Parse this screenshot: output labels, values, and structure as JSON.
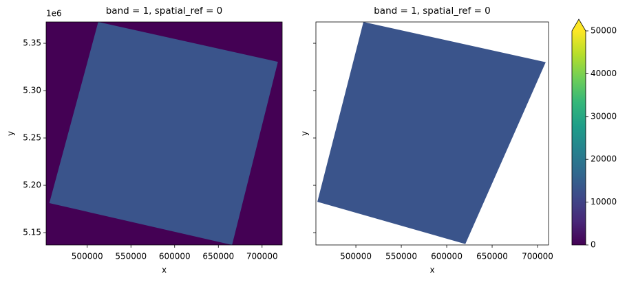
{
  "chart_data": [
    {
      "type": "image",
      "title": "band = 1, spatial_ref = 0",
      "xlabel": "x",
      "ylabel": "y",
      "xlim": [
        453000,
        723000
      ],
      "xticks": [
        500000,
        550000,
        600000,
        650000,
        700000
      ],
      "ylim": [
        5137000,
        5372500
      ],
      "yticks": [
        {
          "value": 5150000,
          "label": "5.15"
        },
        {
          "value": 5200000,
          "label": "5.20"
        },
        {
          "value": 5250000,
          "label": "5.25"
        },
        {
          "value": 5300000,
          "label": "5.30"
        },
        {
          "value": 5350000,
          "label": "5.35"
        }
      ],
      "y_offset_label": "1e6",
      "show_ytick_labels": true,
      "background_value": 0,
      "mean_value": 13000,
      "footprint": {
        "x": [
          512600,
          718100,
          665700,
          456700
        ],
        "y": [
          5372500,
          5330400,
          5137000,
          5181200
        ]
      }
    },
    {
      "type": "image",
      "title": "band = 1, spatial_ref = 0",
      "xlabel": "x",
      "ylabel": "y",
      "xlim": [
        456000,
        712100
      ],
      "xticks": [
        500000,
        550000,
        600000,
        650000,
        700000
      ],
      "ylim": [
        5137000,
        5372500
      ],
      "yticks": [
        5150000,
        5200000,
        5250000,
        5300000,
        5350000
      ],
      "show_ytick_labels": false,
      "background_value": null,
      "mean_value": 13000,
      "footprint": {
        "x": [
          508300,
          709000,
          620500,
          457600
        ],
        "y": [
          5372500,
          5330000,
          5138000,
          5182600
        ]
      }
    }
  ],
  "colorbar": {
    "colormap": "viridis",
    "lim": [
      0,
      50000
    ],
    "ticks": [
      0,
      10000,
      20000,
      30000,
      40000,
      50000
    ],
    "extend": "max"
  }
}
